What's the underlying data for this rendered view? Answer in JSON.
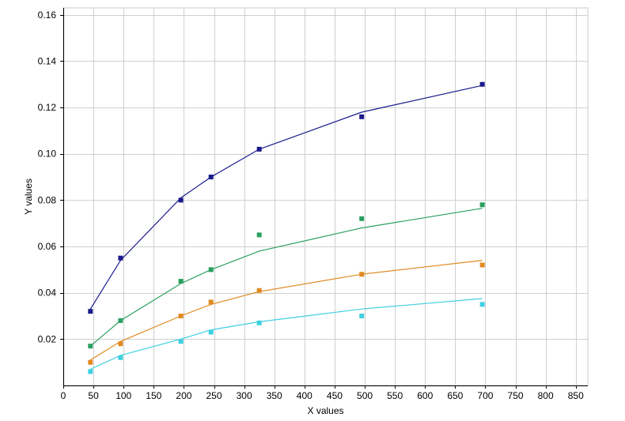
{
  "chart_data": {
    "type": "scatter",
    "title": "",
    "xlabel": "X values",
    "ylabel": "Y values",
    "xlim": [
      0,
      870
    ],
    "ylim": [
      0,
      0.163
    ],
    "grid": true,
    "legend": "none",
    "x_ticks": [
      0,
      50,
      100,
      150,
      200,
      250,
      300,
      350,
      400,
      450,
      500,
      550,
      600,
      650,
      700,
      750,
      800,
      850
    ],
    "y_ticks": [
      0.02,
      0.04,
      0.06,
      0.08,
      0.1,
      0.12,
      0.14,
      0.16
    ],
    "y_tick_labels": [
      "0.02",
      "0.04",
      "0.06",
      "0.08",
      "0.10",
      "0.12",
      "0.14",
      "0.16"
    ],
    "series": [
      {
        "color": "#1a1a8c",
        "points": [
          [
            45,
            0.032
          ],
          [
            95,
            0.055
          ],
          [
            195,
            0.08
          ],
          [
            245,
            0.09
          ],
          [
            325,
            0.102
          ],
          [
            495,
            0.116
          ],
          [
            695,
            0.13
          ]
        ],
        "fit": [
          [
            45,
            0.033
          ],
          [
            95,
            0.054
          ],
          [
            195,
            0.081
          ],
          [
            245,
            0.09
          ],
          [
            325,
            0.102
          ],
          [
            495,
            0.118
          ],
          [
            695,
            0.1295
          ]
        ]
      },
      {
        "color": "#2aa060",
        "points": [
          [
            45,
            0.017
          ],
          [
            95,
            0.028
          ],
          [
            195,
            0.045
          ],
          [
            245,
            0.05
          ],
          [
            325,
            0.065
          ],
          [
            495,
            0.072
          ],
          [
            695,
            0.078
          ]
        ],
        "fit": [
          [
            45,
            0.017
          ],
          [
            95,
            0.028
          ],
          [
            195,
            0.044
          ],
          [
            245,
            0.05
          ],
          [
            325,
            0.058
          ],
          [
            495,
            0.068
          ],
          [
            695,
            0.0765
          ]
        ]
      },
      {
        "color": "#e08a20",
        "points": [
          [
            45,
            0.01
          ],
          [
            95,
            0.018
          ],
          [
            195,
            0.03
          ],
          [
            245,
            0.036
          ],
          [
            325,
            0.041
          ],
          [
            495,
            0.048
          ],
          [
            695,
            0.052
          ]
        ],
        "fit": [
          [
            45,
            0.011
          ],
          [
            95,
            0.019
          ],
          [
            195,
            0.03
          ],
          [
            245,
            0.035
          ],
          [
            325,
            0.0405
          ],
          [
            495,
            0.048
          ],
          [
            695,
            0.054
          ]
        ]
      },
      {
        "color": "#3fd0e0",
        "points": [
          [
            45,
            0.006
          ],
          [
            95,
            0.012
          ],
          [
            195,
            0.019
          ],
          [
            245,
            0.023
          ],
          [
            325,
            0.027
          ],
          [
            495,
            0.03
          ],
          [
            695,
            0.035
          ]
        ],
        "fit": [
          [
            45,
            0.007
          ],
          [
            95,
            0.013
          ],
          [
            195,
            0.02
          ],
          [
            245,
            0.024
          ],
          [
            325,
            0.0275
          ],
          [
            495,
            0.033
          ],
          [
            695,
            0.0375
          ]
        ]
      }
    ]
  }
}
